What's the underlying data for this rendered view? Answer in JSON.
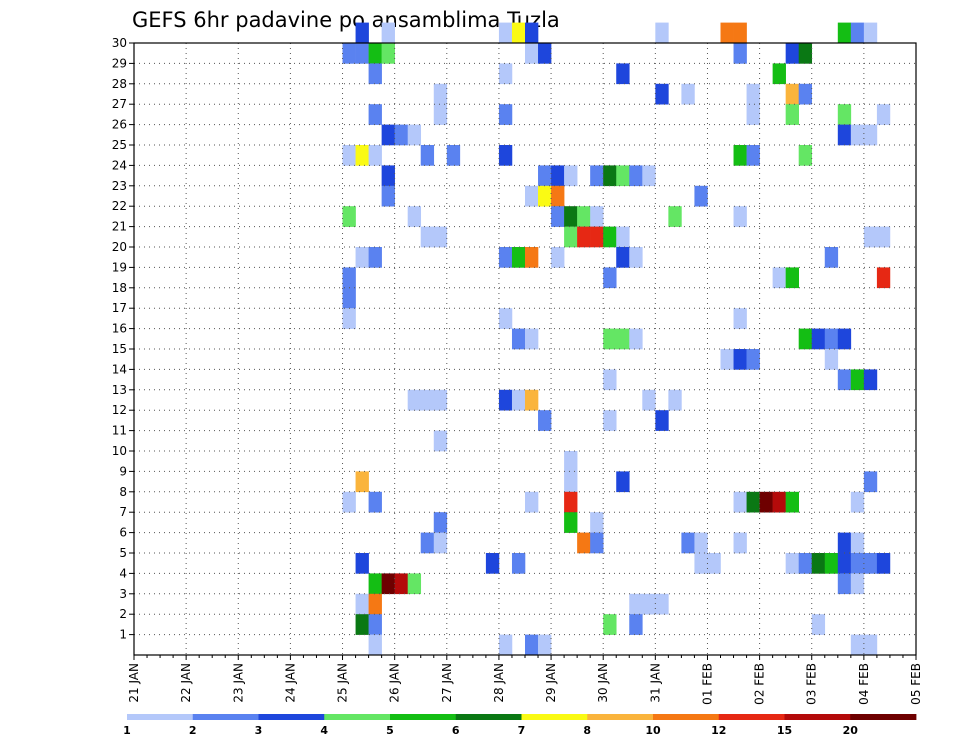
{
  "chart_data": {
    "type": "heatmap",
    "title": "GEFS 6hr padavine po ansamblima Tuzla",
    "ylim": [
      0,
      30
    ],
    "y_ticks": [
      "1",
      "2",
      "3",
      "4",
      "5",
      "6",
      "7",
      "8",
      "9",
      "10",
      "11",
      "12",
      "13",
      "14",
      "15",
      "16",
      "17",
      "18",
      "19",
      "20",
      "21",
      "22",
      "23",
      "24",
      "25",
      "26",
      "27",
      "28",
      "29",
      "30"
    ],
    "x_ticks": [
      "21 JAN",
      "22 JAN",
      "23 JAN",
      "24 JAN",
      "25 JAN",
      "26 JAN",
      "27 JAN",
      "28 JAN",
      "29 JAN",
      "30 JAN",
      "31 JAN",
      "01 FEB",
      "02 FEB",
      "03 FEB",
      "04 FEB",
      "05 FEB"
    ],
    "x_step_hours": 6,
    "grid": true,
    "colorbar": {
      "colors": [
        "#b4c8fa",
        "#5a82f0",
        "#1e46dc",
        "#64e664",
        "#14be14",
        "#0a7814",
        "#fafa14",
        "#fab43c",
        "#f57814",
        "#e62814",
        "#b40a0a",
        "#6e0000"
      ],
      "labels": [
        "1",
        "2",
        "3",
        "4",
        "5",
        "6",
        "7",
        "8",
        "10",
        "12",
        "15",
        "20"
      ],
      "placement": "bottom"
    },
    "cells": [
      [
        17,
        30,
        2
      ],
      [
        19,
        30,
        0
      ],
      [
        28,
        30,
        0
      ],
      [
        29,
        30,
        6
      ],
      [
        30,
        30,
        2
      ],
      [
        40,
        30,
        0
      ],
      [
        45,
        30,
        8
      ],
      [
        46,
        30,
        8
      ],
      [
        54,
        30,
        4
      ],
      [
        55,
        30,
        1
      ],
      [
        56,
        30,
        0
      ],
      [
        16,
        29,
        1
      ],
      [
        17,
        29,
        1
      ],
      [
        18,
        29,
        4
      ],
      [
        19,
        29,
        3
      ],
      [
        30,
        29,
        0
      ],
      [
        31,
        29,
        2
      ],
      [
        46,
        29,
        1
      ],
      [
        50,
        29,
        2
      ],
      [
        51,
        29,
        5
      ],
      [
        18,
        28,
        1
      ],
      [
        28,
        28,
        0
      ],
      [
        37,
        28,
        2
      ],
      [
        49,
        28,
        4
      ],
      [
        23,
        27,
        0
      ],
      [
        40,
        27,
        2
      ],
      [
        42,
        27,
        0
      ],
      [
        47,
        27,
        0
      ],
      [
        50,
        27,
        7
      ],
      [
        51,
        27,
        1
      ],
      [
        18,
        26,
        1
      ],
      [
        23,
        26,
        0
      ],
      [
        28,
        26,
        1
      ],
      [
        47,
        26,
        0
      ],
      [
        50,
        26,
        3
      ],
      [
        54,
        26,
        3
      ],
      [
        57,
        26,
        0
      ],
      [
        19,
        25,
        2
      ],
      [
        20,
        25,
        1
      ],
      [
        21,
        25,
        0
      ],
      [
        54,
        25,
        2
      ],
      [
        55,
        25,
        0
      ],
      [
        56,
        25,
        0
      ],
      [
        16,
        24,
        0
      ],
      [
        17,
        24,
        6
      ],
      [
        18,
        24,
        0
      ],
      [
        22,
        24,
        1
      ],
      [
        24,
        24,
        1
      ],
      [
        28,
        24,
        2
      ],
      [
        46,
        24,
        4
      ],
      [
        47,
        24,
        1
      ],
      [
        51,
        24,
        3
      ],
      [
        19,
        23,
        2
      ],
      [
        31,
        23,
        1
      ],
      [
        32,
        23,
        2
      ],
      [
        33,
        23,
        0
      ],
      [
        35,
        23,
        1
      ],
      [
        36,
        23,
        5
      ],
      [
        37,
        23,
        3
      ],
      [
        38,
        23,
        1
      ],
      [
        39,
        23,
        0
      ],
      [
        19,
        22,
        1
      ],
      [
        30,
        22,
        0
      ],
      [
        31,
        22,
        6
      ],
      [
        32,
        22,
        8
      ],
      [
        43,
        22,
        1
      ],
      [
        16,
        21,
        3
      ],
      [
        21,
        21,
        0
      ],
      [
        32,
        21,
        1
      ],
      [
        33,
        21,
        5
      ],
      [
        34,
        21,
        3
      ],
      [
        35,
        21,
        0
      ],
      [
        41,
        21,
        3
      ],
      [
        46,
        21,
        0
      ],
      [
        22,
        20,
        0
      ],
      [
        23,
        20,
        0
      ],
      [
        33,
        20,
        3
      ],
      [
        34,
        20,
        9
      ],
      [
        35,
        20,
        9
      ],
      [
        36,
        20,
        4
      ],
      [
        37,
        20,
        0
      ],
      [
        56,
        20,
        0
      ],
      [
        57,
        20,
        0
      ],
      [
        17,
        19,
        0
      ],
      [
        18,
        19,
        1
      ],
      [
        28,
        19,
        1
      ],
      [
        29,
        19,
        4
      ],
      [
        30,
        19,
        8
      ],
      [
        32,
        19,
        0
      ],
      [
        37,
        19,
        2
      ],
      [
        38,
        19,
        0
      ],
      [
        53,
        19,
        1
      ],
      [
        16,
        18,
        1
      ],
      [
        36,
        18,
        1
      ],
      [
        49,
        18,
        0
      ],
      [
        50,
        18,
        4
      ],
      [
        57,
        18,
        9
      ],
      [
        16,
        17,
        1
      ],
      [
        16,
        16,
        0
      ],
      [
        28,
        16,
        0
      ],
      [
        46,
        16,
        0
      ],
      [
        29,
        15,
        1
      ],
      [
        30,
        15,
        0
      ],
      [
        36,
        15,
        3
      ],
      [
        37,
        15,
        3
      ],
      [
        38,
        15,
        0
      ],
      [
        51,
        15,
        4
      ],
      [
        52,
        15,
        2
      ],
      [
        53,
        15,
        1
      ],
      [
        54,
        15,
        2
      ],
      [
        45,
        14,
        0
      ],
      [
        46,
        14,
        2
      ],
      [
        47,
        14,
        1
      ],
      [
        53,
        14,
        0
      ],
      [
        36,
        13,
        0
      ],
      [
        54,
        13,
        1
      ],
      [
        55,
        13,
        4
      ],
      [
        56,
        13,
        2
      ],
      [
        21,
        12,
        0
      ],
      [
        22,
        12,
        0
      ],
      [
        23,
        12,
        0
      ],
      [
        28,
        12,
        2
      ],
      [
        29,
        12,
        0
      ],
      [
        30,
        12,
        7
      ],
      [
        39,
        12,
        0
      ],
      [
        41,
        12,
        0
      ],
      [
        31,
        11,
        1
      ],
      [
        36,
        11,
        0
      ],
      [
        40,
        11,
        2
      ],
      [
        23,
        10,
        0
      ],
      [
        33,
        9,
        0
      ],
      [
        17,
        8,
        7
      ],
      [
        33,
        8,
        0
      ],
      [
        37,
        8,
        2
      ],
      [
        56,
        8,
        1
      ],
      [
        16,
        7,
        0
      ],
      [
        18,
        7,
        1
      ],
      [
        30,
        7,
        0
      ],
      [
        33,
        7,
        9
      ],
      [
        46,
        7,
        0
      ],
      [
        47,
        7,
        5
      ],
      [
        48,
        7,
        11
      ],
      [
        49,
        7,
        10
      ],
      [
        50,
        7,
        4
      ],
      [
        55,
        7,
        0
      ],
      [
        23,
        6,
        1
      ],
      [
        33,
        6,
        4
      ],
      [
        35,
        6,
        0
      ],
      [
        22,
        5,
        1
      ],
      [
        23,
        5,
        0
      ],
      [
        34,
        5,
        8
      ],
      [
        35,
        5,
        1
      ],
      [
        42,
        5,
        1
      ],
      [
        43,
        5,
        0
      ],
      [
        46,
        5,
        0
      ],
      [
        54,
        5,
        2
      ],
      [
        55,
        5,
        0
      ],
      [
        17,
        4,
        2
      ],
      [
        27,
        4,
        2
      ],
      [
        29,
        4,
        1
      ],
      [
        43,
        4,
        0
      ],
      [
        44,
        4,
        0
      ],
      [
        50,
        4,
        0
      ],
      [
        51,
        4,
        1
      ],
      [
        52,
        4,
        5
      ],
      [
        53,
        4,
        4
      ],
      [
        54,
        4,
        2
      ],
      [
        55,
        4,
        1
      ],
      [
        56,
        4,
        1
      ],
      [
        57,
        4,
        2
      ],
      [
        18,
        3,
        4
      ],
      [
        19,
        3,
        11
      ],
      [
        20,
        3,
        10
      ],
      [
        21,
        3,
        3
      ],
      [
        54,
        3,
        1
      ],
      [
        55,
        3,
        0
      ],
      [
        17,
        2,
        0
      ],
      [
        18,
        2,
        8
      ],
      [
        38,
        2,
        0
      ],
      [
        39,
        2,
        0
      ],
      [
        40,
        2,
        0
      ],
      [
        17,
        1,
        5
      ],
      [
        18,
        1,
        1
      ],
      [
        36,
        1,
        3
      ],
      [
        38,
        1,
        1
      ],
      [
        52,
        1,
        0
      ],
      [
        18,
        0,
        0
      ],
      [
        28,
        0,
        0
      ],
      [
        30,
        0,
        1
      ],
      [
        31,
        0,
        0
      ],
      [
        55,
        0,
        0
      ],
      [
        56,
        0,
        0
      ]
    ]
  }
}
